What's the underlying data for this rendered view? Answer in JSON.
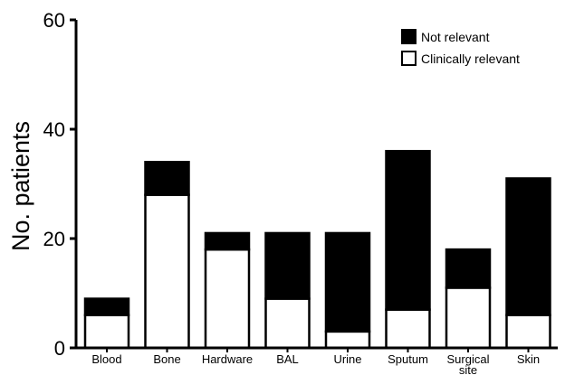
{
  "chart_data": {
    "type": "bar",
    "stacked": true,
    "title": "",
    "xlabel": "",
    "ylabel": "No. patients",
    "ylim": [
      0,
      60
    ],
    "yticks": [
      0,
      20,
      40,
      60
    ],
    "categories": [
      "Blood",
      "Bone",
      "Hardware",
      "BAL",
      "Urine",
      "Sputum",
      "Surgical site",
      "Skin"
    ],
    "category_lines": [
      [
        "Blood"
      ],
      [
        "Bone"
      ],
      [
        "Hardware"
      ],
      [
        "BAL"
      ],
      [
        "Urine"
      ],
      [
        "Sputum"
      ],
      [
        "Surgical",
        "site"
      ],
      [
        "Skin"
      ]
    ],
    "series": [
      {
        "name": "Clinically relevant",
        "color": "#ffffff",
        "values": [
          6,
          28,
          18,
          9,
          3,
          7,
          11,
          6
        ]
      },
      {
        "name": "Not relevant",
        "color": "#000000",
        "values": [
          3,
          6,
          3,
          12,
          18,
          29,
          7,
          25
        ]
      }
    ],
    "legend": {
      "placement": "top-right",
      "order": [
        "Not relevant",
        "Clinically relevant"
      ]
    },
    "grid": false
  }
}
